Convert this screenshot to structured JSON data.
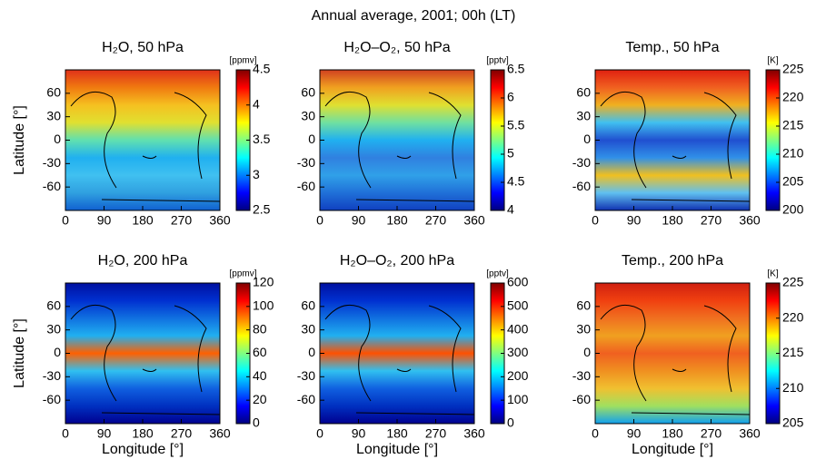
{
  "title": "Annual average, 2001; 00h (LT)",
  "chart_data": [
    {
      "type": "map",
      "title": "H₂O, 50 hPa",
      "y_label": "Latitude [°]",
      "colormap": "jet",
      "xlim": [
        0,
        360
      ],
      "xticks": [
        0,
        90,
        180,
        270,
        360
      ],
      "ylim": [
        -90,
        90
      ],
      "yticks": [
        -60,
        -30,
        0,
        30,
        60
      ],
      "colorbar": {
        "label": "[ppmv]",
        "lim": [
          2.5,
          4.5
        ],
        "ticks": [
          2.5,
          3,
          3.5,
          4,
          4.5
        ]
      }
    },
    {
      "type": "map",
      "title": "H₂O–O₂, 50 hPa",
      "colormap": "jet",
      "xlim": [
        0,
        360
      ],
      "xticks": [
        0,
        90,
        180,
        270,
        360
      ],
      "ylim": [
        -90,
        90
      ],
      "yticks": [
        -60,
        -30,
        0,
        30,
        60
      ],
      "colorbar": {
        "label": "[pptv]",
        "lim": [
          4,
          6.5
        ],
        "ticks": [
          4,
          4.5,
          5,
          5.5,
          6,
          6.5
        ]
      }
    },
    {
      "type": "map",
      "title": "Temp., 50 hPa",
      "colormap": "jet",
      "xlim": [
        0,
        360
      ],
      "xticks": [
        0,
        90,
        180,
        270,
        360
      ],
      "ylim": [
        -90,
        90
      ],
      "yticks": [
        -60,
        -30,
        0,
        30,
        60
      ],
      "colorbar": {
        "label": "[K]",
        "lim": [
          200,
          225
        ],
        "ticks": [
          200,
          205,
          210,
          215,
          220,
          225
        ]
      }
    },
    {
      "type": "map",
      "title": "H₂O, 200 hPa",
      "y_label": "Latitude [°]",
      "x_label": "Longitude [°]",
      "colormap": "jet",
      "xlim": [
        0,
        360
      ],
      "xticks": [
        0,
        90,
        180,
        270,
        360
      ],
      "ylim": [
        -90,
        90
      ],
      "yticks": [
        -60,
        -30,
        0,
        30,
        60
      ],
      "colorbar": {
        "label": "[ppmv]",
        "lim": [
          0,
          120
        ],
        "ticks": [
          0,
          20,
          40,
          60,
          80,
          100,
          120
        ]
      }
    },
    {
      "type": "map",
      "title": "H₂O–O₂, 200 hPa",
      "x_label": "Longitude [°]",
      "colormap": "jet",
      "xlim": [
        0,
        360
      ],
      "xticks": [
        0,
        90,
        180,
        270,
        360
      ],
      "ylim": [
        -90,
        90
      ],
      "yticks": [
        -60,
        -30,
        0,
        30,
        60
      ],
      "colorbar": {
        "label": "[pptv]",
        "lim": [
          0,
          600
        ],
        "ticks": [
          0,
          100,
          200,
          300,
          400,
          500,
          600
        ]
      }
    },
    {
      "type": "map",
      "title": "Temp., 200 hPa",
      "x_label": "Longitude [°]",
      "colormap": "jet",
      "xlim": [
        0,
        360
      ],
      "xticks": [
        0,
        90,
        180,
        270,
        360
      ],
      "ylim": [
        -90,
        90
      ],
      "yticks": [
        -60,
        -30,
        0,
        30,
        60
      ],
      "colorbar": {
        "label": "[K]",
        "lim": [
          205,
          225
        ],
        "ticks": [
          205,
          210,
          215,
          220,
          225
        ]
      }
    }
  ]
}
